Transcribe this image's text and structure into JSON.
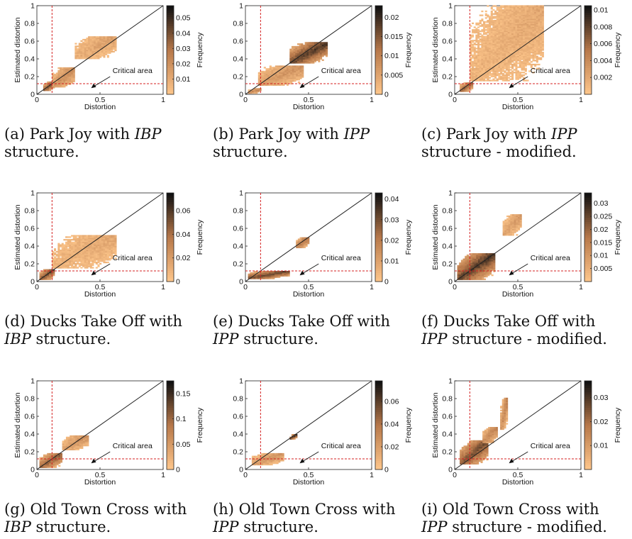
{
  "figure": {
    "colors": {
      "heat_low": "#fdc58a",
      "heat_mid": "#b7784a",
      "heat_high": "#111111",
      "critical": "#d42020",
      "diagonal": "#222222"
    },
    "panels": [
      {
        "id": "a",
        "caption": {
          "tag": "(a)",
          "title": "Park Joy with",
          "structure": "IBP",
          "rest": "structure."
        }
      },
      {
        "id": "b",
        "caption": {
          "tag": "(b)",
          "title": "Park Joy with",
          "structure": "IPP",
          "rest": "structure."
        }
      },
      {
        "id": "c",
        "caption": {
          "tag": "(c)",
          "title": "Park Joy with",
          "structure": "IPP",
          "rest": "structure - modified."
        }
      },
      {
        "id": "d",
        "caption": {
          "tag": "(d)",
          "title": "Ducks Take Off with",
          "structure": "IBP",
          "rest": "structure."
        }
      },
      {
        "id": "e",
        "caption": {
          "tag": "(e)",
          "title": "Ducks Take Off with",
          "structure": "IPP",
          "rest": "structure."
        }
      },
      {
        "id": "f",
        "caption": {
          "tag": "(f)",
          "title": "Ducks Take Off with",
          "structure": "IPP",
          "rest": "structure - modified."
        }
      },
      {
        "id": "g",
        "caption": {
          "tag": "(g)",
          "title": "Old Town Cross with",
          "structure": "IBP",
          "rest": "structure."
        }
      },
      {
        "id": "h",
        "caption": {
          "tag": "(h)",
          "title": "Old Town Cross with",
          "structure": "IPP",
          "rest": "structure."
        }
      },
      {
        "id": "i",
        "caption": {
          "tag": "(i)",
          "title": "Old Town Cross with",
          "structure": "IPP",
          "rest": "structure - modified."
        }
      }
    ]
  },
  "chart_data": [
    {
      "panel": "a",
      "type": "heatmap",
      "xlabel": "Distortion",
      "ylabel": "Estimated distortion",
      "colorbar_label": "Frequency",
      "xlim": [
        0,
        1
      ],
      "ylim": [
        0,
        1
      ],
      "x_ticks": [
        "0",
        "0.5",
        "1"
      ],
      "y_ticks": [
        "0",
        "0.2",
        "0.4",
        "0.6",
        "0.8",
        "1"
      ],
      "colorbar_ticks": [
        "0.01",
        "0.02",
        "0.03",
        "0.04",
        "0.05"
      ],
      "colorbar_max": 0.058,
      "critical_threshold": 0.12,
      "annotation": "Critical area",
      "arrow_target": [
        0.43,
        0.07
      ],
      "blobs": [
        {
          "x": [
            0.05,
            0.14
          ],
          "y": [
            0.04,
            0.14
          ],
          "density": 0.7
        },
        {
          "x": [
            0.12,
            0.3
          ],
          "y": [
            0.08,
            0.3
          ],
          "density": 0.35
        },
        {
          "x": [
            0.3,
            0.62
          ],
          "y": [
            0.4,
            0.65
          ],
          "density": 0.2
        }
      ]
    },
    {
      "panel": "b",
      "type": "heatmap",
      "xlabel": "Distortion",
      "ylabel": "",
      "colorbar_label": "Frequency",
      "xlim": [
        0,
        1
      ],
      "ylim": [
        0,
        1
      ],
      "x_ticks": [
        "0",
        "0.5",
        "1"
      ],
      "y_ticks": [
        "0",
        "0.2",
        "0.4",
        "0.6",
        "0.8",
        "1"
      ],
      "colorbar_ticks": [
        "0",
        "0.005",
        "0.01",
        "0.015",
        "0.02"
      ],
      "colorbar_max": 0.023,
      "critical_threshold": 0.12,
      "annotation": "Critical area",
      "arrow_target": [
        0.43,
        0.07
      ],
      "blobs": [
        {
          "x": [
            0.02,
            0.12
          ],
          "y": [
            0.01,
            0.06
          ],
          "density": 0.4
        },
        {
          "x": [
            0.1,
            0.45
          ],
          "y": [
            0.1,
            0.32
          ],
          "density": 0.3
        },
        {
          "x": [
            0.35,
            0.65
          ],
          "y": [
            0.35,
            0.58
          ],
          "density": 0.8
        }
      ]
    },
    {
      "panel": "c",
      "type": "heatmap",
      "xlabel": "Distortion",
      "ylabel": "Estimated distortion",
      "colorbar_label": "Frequency",
      "xlim": [
        0,
        1
      ],
      "ylim": [
        0,
        1
      ],
      "x_ticks": [
        "0",
        "0.5",
        "1"
      ],
      "y_ticks": [
        "0",
        "0.2",
        "0.4",
        "0.6",
        "0.8",
        "1"
      ],
      "colorbar_ticks": [
        "0.002",
        "0.004",
        "0.006",
        "0.008",
        "0.01"
      ],
      "colorbar_max": 0.0105,
      "critical_threshold": 0.12,
      "annotation": "Critical area",
      "arrow_target": [
        0.43,
        0.07
      ],
      "blobs": [
        {
          "x": [
            0.04,
            0.14
          ],
          "y": [
            0.03,
            0.13
          ],
          "density": 0.6
        },
        {
          "x": [
            0.12,
            0.7
          ],
          "y": [
            0.15,
            1.0
          ],
          "density": 0.15
        }
      ]
    },
    {
      "panel": "d",
      "type": "heatmap",
      "xlabel": "Distortion",
      "ylabel": "Estimated distortion",
      "colorbar_label": "Frequency",
      "xlim": [
        0,
        1
      ],
      "ylim": [
        0,
        1
      ],
      "x_ticks": [
        "0",
        "0.5",
        "1"
      ],
      "y_ticks": [
        "0",
        "0.2",
        "0.4",
        "0.6",
        "0.8",
        "1"
      ],
      "colorbar_ticks": [
        "0",
        "0.02",
        "0.04",
        "0.06"
      ],
      "colorbar_max": 0.075,
      "critical_threshold": 0.12,
      "annotation": "Critical area",
      "arrow_target": [
        0.43,
        0.07
      ],
      "blobs": [
        {
          "x": [
            0.02,
            0.14
          ],
          "y": [
            0.02,
            0.14
          ],
          "density": 0.7
        },
        {
          "x": [
            0.12,
            0.62
          ],
          "y": [
            0.15,
            0.52
          ],
          "density": 0.15
        }
      ]
    },
    {
      "panel": "e",
      "type": "heatmap",
      "xlabel": "Distortion",
      "ylabel": "",
      "colorbar_label": "Frequency",
      "xlim": [
        0,
        1
      ],
      "ylim": [
        0,
        1
      ],
      "x_ticks": [
        "0",
        "0.5",
        "1"
      ],
      "y_ticks": [
        "0",
        "0.2",
        "0.4",
        "0.6",
        "0.8",
        "1"
      ],
      "colorbar_ticks": [
        "0",
        "0.01",
        "0.02",
        "0.03",
        "0.04"
      ],
      "colorbar_max": 0.043,
      "critical_threshold": 0.12,
      "annotation": "Critical area",
      "arrow_target": [
        0.43,
        0.07
      ],
      "blobs": [
        {
          "x": [
            0.02,
            0.35
          ],
          "y": [
            0.03,
            0.12
          ],
          "density": 0.75
        },
        {
          "x": [
            0.4,
            0.5
          ],
          "y": [
            0.38,
            0.5
          ],
          "density": 0.5
        }
      ]
    },
    {
      "panel": "f",
      "type": "heatmap",
      "xlabel": "Distortion",
      "ylabel": "Estimated distortion",
      "colorbar_label": "Frequency",
      "xlim": [
        0,
        1
      ],
      "ylim": [
        0,
        1
      ],
      "x_ticks": [
        "0",
        "0.5",
        "1"
      ],
      "y_ticks": [
        "0",
        "0.2",
        "0.4",
        "0.6",
        "0.8",
        "1"
      ],
      "colorbar_ticks": [
        "0.005",
        "0.01",
        "0.015",
        "0.02",
        "0.025",
        "0.03"
      ],
      "colorbar_max": 0.034,
      "critical_threshold": 0.12,
      "annotation": "Critical area",
      "arrow_target": [
        0.43,
        0.07
      ],
      "blobs": [
        {
          "x": [
            0.02,
            0.32
          ],
          "y": [
            0.02,
            0.32
          ],
          "density": 0.8
        },
        {
          "x": [
            0.38,
            0.52
          ],
          "y": [
            0.52,
            0.75
          ],
          "density": 0.25
        }
      ]
    },
    {
      "panel": "g",
      "type": "heatmap",
      "xlabel": "Distortion",
      "ylabel": "Estimated distortion",
      "colorbar_label": "Frequency",
      "xlim": [
        0,
        1
      ],
      "ylim": [
        0,
        1
      ],
      "x_ticks": [
        "0",
        "0.5",
        "1"
      ],
      "y_ticks": [
        "0",
        "0.2",
        "0.4",
        "0.6",
        "0.8",
        "1"
      ],
      "colorbar_ticks": [
        "0",
        "0.05",
        "0.1",
        "0.15"
      ],
      "colorbar_max": 0.175,
      "critical_threshold": 0.12,
      "annotation": "Critical area",
      "arrow_target": [
        0.43,
        0.07
      ],
      "blobs": [
        {
          "x": [
            0.02,
            0.2
          ],
          "y": [
            0.02,
            0.18
          ],
          "density": 0.6
        },
        {
          "x": [
            0.2,
            0.4
          ],
          "y": [
            0.22,
            0.38
          ],
          "density": 0.3
        }
      ]
    },
    {
      "panel": "h",
      "type": "heatmap",
      "xlabel": "Distortion",
      "ylabel": "",
      "colorbar_label": "Frequency",
      "xlim": [
        0,
        1
      ],
      "ylim": [
        0,
        1
      ],
      "x_ticks": [
        "0",
        "0.5",
        "1"
      ],
      "y_ticks": [
        "0",
        "0.2",
        "0.4",
        "0.6",
        "0.8",
        "1"
      ],
      "colorbar_ticks": [
        "0",
        "0.02",
        "0.04",
        "0.06"
      ],
      "colorbar_max": 0.078,
      "critical_threshold": 0.12,
      "annotation": "Critical area",
      "arrow_target": [
        0.43,
        0.07
      ],
      "blobs": [
        {
          "x": [
            0.05,
            0.3
          ],
          "y": [
            0.05,
            0.18
          ],
          "density": 0.3
        },
        {
          "x": [
            0.35,
            0.4
          ],
          "y": [
            0.34,
            0.39
          ],
          "density": 0.8
        }
      ]
    },
    {
      "panel": "i",
      "type": "heatmap",
      "xlabel": "Distortion",
      "ylabel": "Estimated distortion",
      "colorbar_label": "Frequency",
      "xlim": [
        0,
        1
      ],
      "ylim": [
        0,
        1
      ],
      "x_ticks": [
        "0",
        "0.5",
        "1"
      ],
      "y_ticks": [
        "0",
        "0.2",
        "0.4",
        "0.6",
        "0.8",
        "1"
      ],
      "colorbar_ticks": [
        "0.01",
        "0.02",
        "0.03"
      ],
      "colorbar_max": 0.037,
      "critical_threshold": 0.12,
      "annotation": "Critical area",
      "arrow_target": [
        0.43,
        0.07
      ],
      "blobs": [
        {
          "x": [
            0.04,
            0.26
          ],
          "y": [
            0.06,
            0.32
          ],
          "density": 0.7
        },
        {
          "x": [
            0.22,
            0.33
          ],
          "y": [
            0.3,
            0.48
          ],
          "density": 0.4
        },
        {
          "x": [
            0.36,
            0.41
          ],
          "y": [
            0.45,
            0.8
          ],
          "density": 0.4
        }
      ]
    }
  ]
}
